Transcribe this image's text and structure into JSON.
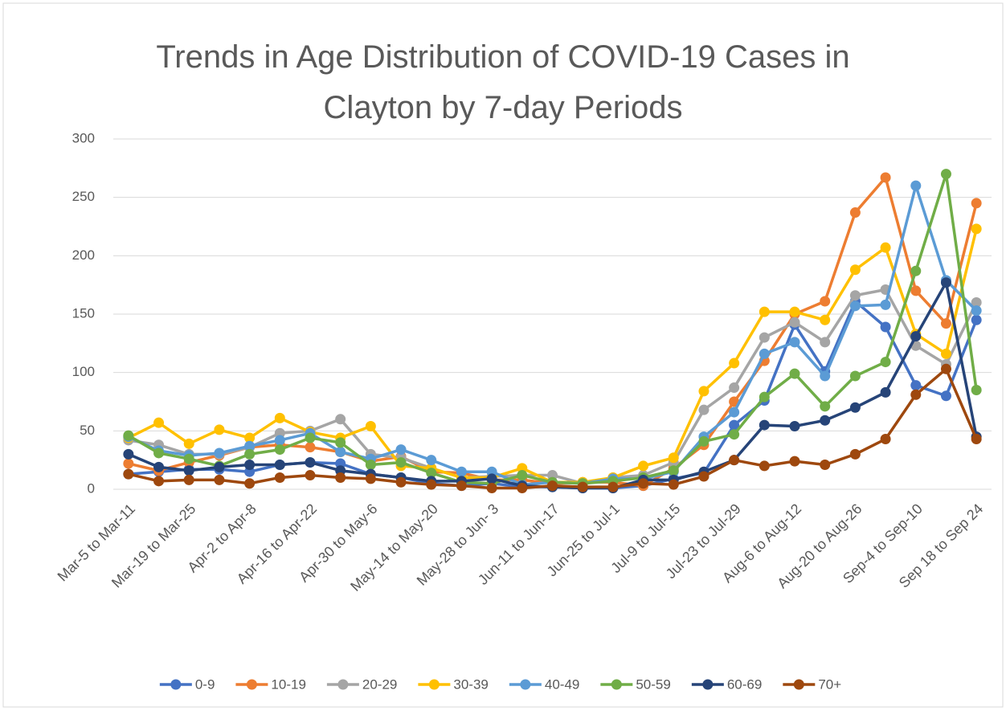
{
  "chart_data": {
    "type": "line",
    "title": "Trends in Age Distribution of COVID-19 Cases in Clayton by 7-day Periods",
    "categories": [
      "Mar-5 to Mar-11",
      null,
      "Mar-19 to Mar-25",
      null,
      "Apr-2 to Apr-8",
      null,
      "Apr-16 to Apr-22",
      null,
      "Apr-30 to May-6",
      null,
      "May-14 to May-20",
      null,
      "May-28 to Jun- 3",
      null,
      "Jun-11 to Jun-17",
      null,
      "Jun-25 to Jul-1",
      null,
      "Jul-9 to Jul-15",
      null,
      "Jul-23 to Jul-29",
      null,
      "Aug-6 to Aug-12",
      null,
      "Aug-20 to Aug-26",
      null,
      "Sep-4 to Sep-10",
      null,
      "Sep 18 to Sep 24"
    ],
    "series": [
      {
        "name": "0-9",
        "color": "#4472c4",
        "values": [
          13,
          15,
          17,
          17,
          15,
          21,
          23,
          22,
          13,
          10,
          5,
          3,
          5,
          2,
          2,
          1,
          1,
          3,
          9,
          14,
          55,
          76,
          141,
          101,
          161,
          139,
          89,
          80,
          145
        ]
      },
      {
        "name": "10-19",
        "color": "#ed7d31",
        "values": [
          22,
          16,
          23,
          29,
          36,
          38,
          36,
          32,
          24,
          28,
          15,
          14,
          8,
          8,
          5,
          6,
          6,
          3,
          18,
          38,
          75,
          110,
          150,
          161,
          237,
          267,
          170,
          142,
          245
        ]
      },
      {
        "name": "20-29",
        "color": "#a5a5a5",
        "values": [
          42,
          38,
          30,
          30,
          36,
          48,
          50,
          60,
          30,
          27,
          18,
          10,
          11,
          12,
          12,
          5,
          10,
          12,
          23,
          68,
          87,
          130,
          143,
          126,
          166,
          171,
          123,
          107,
          160
        ]
      },
      {
        "name": "30-39",
        "color": "#ffc000",
        "values": [
          44,
          57,
          39,
          51,
          44,
          61,
          49,
          44,
          54,
          20,
          18,
          10,
          10,
          18,
          6,
          6,
          10,
          20,
          27,
          84,
          108,
          152,
          152,
          145,
          188,
          207,
          133,
          116,
          223
        ]
      },
      {
        "name": "40-49",
        "color": "#5b9bd5",
        "values": [
          45,
          33,
          29,
          31,
          37,
          42,
          48,
          32,
          26,
          34,
          25,
          15,
          15,
          4,
          6,
          5,
          9,
          9,
          15,
          45,
          66,
          116,
          126,
          97,
          157,
          158,
          260,
          179,
          153
        ]
      },
      {
        "name": "50-59",
        "color": "#70ad47",
        "values": [
          46,
          31,
          26,
          20,
          30,
          34,
          44,
          40,
          21,
          23,
          14,
          6,
          5,
          12,
          6,
          5,
          7,
          10,
          16,
          41,
          47,
          79,
          99,
          71,
          97,
          109,
          187,
          270,
          85
        ]
      },
      {
        "name": "60-69",
        "color": "#264478",
        "values": [
          30,
          19,
          16,
          19,
          21,
          21,
          23,
          16,
          13,
          10,
          7,
          7,
          9,
          3,
          2,
          1,
          1,
          8,
          8,
          15,
          25,
          55,
          54,
          59,
          70,
          83,
          131,
          177,
          45
        ]
      },
      {
        "name": "70+",
        "color": "#9e480e",
        "values": [
          13,
          7,
          8,
          8,
          5,
          10,
          12,
          10,
          9,
          6,
          4,
          3,
          1,
          1,
          3,
          2,
          2,
          5,
          4,
          11,
          25,
          20,
          24,
          21,
          30,
          43,
          81,
          103,
          43
        ]
      }
    ],
    "ylim": [
      0,
      300
    ],
    "yticks": [
      0,
      50,
      100,
      150,
      200,
      250,
      300
    ],
    "grid": true,
    "legend": "bottom"
  }
}
